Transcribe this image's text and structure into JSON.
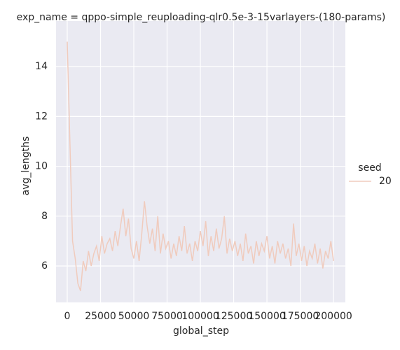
{
  "chart_data": {
    "type": "line",
    "title": "exp_name = qppo-simple_reuploading-qlr0.5e-3-15varlayers-(180-params)",
    "x_label": "global_step",
    "y_label": "avg_lengths",
    "legend_title": "seed",
    "legend_position": "right",
    "grid": true,
    "xlim": [
      -8400,
      208900
    ],
    "ylim": [
      4.54,
      15.83
    ],
    "xticks": [
      0,
      25000,
      50000,
      75000,
      100000,
      125000,
      150000,
      175000,
      200000
    ],
    "yticks": [
      6,
      8,
      10,
      12,
      14
    ],
    "x": [
      0,
      2000,
      4000,
      6000,
      8000,
      10000,
      12000,
      14000,
      16000,
      18000,
      20000,
      22000,
      24000,
      26000,
      28000,
      30000,
      32000,
      34000,
      36000,
      38000,
      40000,
      42000,
      44000,
      46000,
      48000,
      50000,
      52000,
      54000,
      56000,
      58000,
      60000,
      62000,
      64000,
      66000,
      68000,
      70000,
      72000,
      74000,
      76000,
      78000,
      80000,
      82000,
      84000,
      86000,
      88000,
      90000,
      92000,
      94000,
      96000,
      98000,
      100000,
      102000,
      104000,
      106000,
      108000,
      110000,
      112000,
      114000,
      116000,
      118000,
      120000,
      122000,
      124000,
      126000,
      128000,
      130000,
      132000,
      134000,
      136000,
      138000,
      140000,
      142000,
      144000,
      146000,
      148000,
      150000,
      152000,
      154000,
      156000,
      158000,
      160000,
      162000,
      164000,
      166000,
      168000,
      170000,
      172000,
      174000,
      176000,
      178000,
      180000,
      182000,
      184000,
      186000,
      188000,
      190000,
      192000,
      194000,
      196000,
      198000,
      200000
    ],
    "series": [
      {
        "name": "20",
        "color": "#f0cbbd",
        "values": [
          15.0,
          11.0,
          7.0,
          6.3,
          5.3,
          5.0,
          6.2,
          5.8,
          6.6,
          6.0,
          6.5,
          6.8,
          6.2,
          7.2,
          6.5,
          6.9,
          7.1,
          6.6,
          7.4,
          6.8,
          7.6,
          8.3,
          7.2,
          7.9,
          6.7,
          6.3,
          7.0,
          6.2,
          7.3,
          8.6,
          7.6,
          6.9,
          7.5,
          6.6,
          8.0,
          6.5,
          7.3,
          6.7,
          7.0,
          6.3,
          6.9,
          6.4,
          7.2,
          6.6,
          7.6,
          6.5,
          6.9,
          6.2,
          7.0,
          6.6,
          7.4,
          6.8,
          7.8,
          6.4,
          7.2,
          6.6,
          7.5,
          6.7,
          7.1,
          8.0,
          6.5,
          7.1,
          6.6,
          7.0,
          6.4,
          6.9,
          6.2,
          7.3,
          6.5,
          6.8,
          6.1,
          7.0,
          6.4,
          6.9,
          6.6,
          7.2,
          6.3,
          6.8,
          6.1,
          7.0,
          6.5,
          6.9,
          6.3,
          6.7,
          6.0,
          7.7,
          6.4,
          6.9,
          6.2,
          6.8,
          6.0,
          6.6,
          6.3,
          6.9,
          6.1,
          6.7,
          5.9,
          6.6,
          6.3,
          7.0,
          6.2
        ]
      }
    ]
  }
}
